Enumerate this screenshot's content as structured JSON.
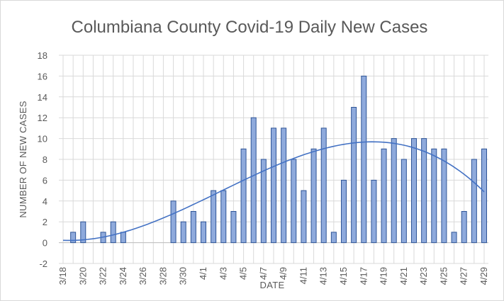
{
  "chart_data": {
    "type": "bar",
    "title": "Columbiana County Covid-19 Daily New Cases",
    "xlabel": "DATE",
    "ylabel": "NUMBER OF NEW CASES",
    "ylim": [
      -2,
      18
    ],
    "yticks": [
      -2,
      0,
      2,
      4,
      6,
      8,
      10,
      12,
      14,
      16,
      18
    ],
    "grid": true,
    "legend": "none",
    "colors": {
      "bar_fill": "#8faadc",
      "bar_stroke": "#2f5597",
      "trend": "#4472c4",
      "grid": "#d9d9d9",
      "text": "#595959"
    },
    "categories": [
      "3/18",
      "3/19",
      "3/20",
      "3/21",
      "3/22",
      "3/23",
      "3/24",
      "3/25",
      "3/26",
      "3/27",
      "3/28",
      "3/29",
      "3/30",
      "3/31",
      "4/1",
      "4/2",
      "4/3",
      "4/4",
      "4/5",
      "4/6",
      "4/7",
      "4/8",
      "4/9",
      "4/10",
      "4/11",
      "4/12",
      "4/13",
      "4/14",
      "4/15",
      "4/16",
      "4/17",
      "4/18",
      "4/19",
      "4/20",
      "4/21",
      "4/22",
      "4/23",
      "4/24",
      "4/25",
      "4/26",
      "4/27",
      "4/28",
      "4/29"
    ],
    "tick_labels": [
      "3/18",
      "3/20",
      "3/22",
      "3/24",
      "3/26",
      "3/28",
      "3/30",
      "4/1",
      "4/3",
      "4/5",
      "4/7",
      "4/9",
      "4/11",
      "4/13",
      "4/15",
      "4/17",
      "4/19",
      "4/21",
      "4/23",
      "4/25",
      "4/27",
      "4/29"
    ],
    "series": [
      {
        "values": [
          0,
          1,
          2,
          0,
          1,
          2,
          1,
          0,
          0,
          0,
          0,
          4,
          2,
          3,
          2,
          5,
          5,
          3,
          9,
          12,
          8,
          11,
          11,
          8,
          5,
          9,
          11,
          1,
          6,
          13,
          16,
          6,
          9,
          10,
          8,
          10,
          10,
          9,
          9,
          1,
          3,
          8,
          9
        ]
      }
    ],
    "trendline": {
      "type": "polynomial"
    }
  }
}
